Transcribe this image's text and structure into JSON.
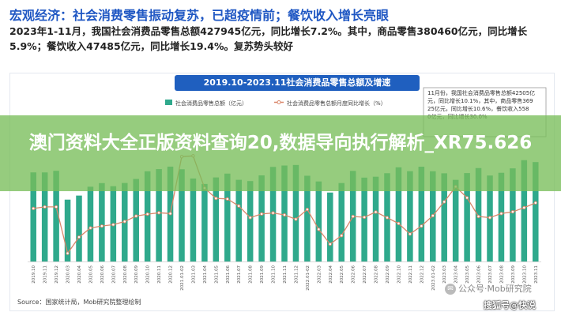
{
  "headline": "宏观经济：社会消费零售振动复苏，已超疫情前；餐饮收入增长亮眼",
  "summary": "2023年1-11月，我国社会消费品零售总额427945亿元，同比增长7.2%。其中，商品零售380460亿元，同比增长5.9%；餐饮收入47485亿元，同比增长19.4%。复苏势头较好",
  "overlay_title": "澳门资料大全正版资料查询20,数据导向执行解析_XR75.626",
  "source": "Source：国家统计局，Mob研究院整理绘制",
  "watermark": "公众号·Mob研究院",
  "sohu": "搜狐号@快说",
  "colors": {
    "bar": "#2fa98c",
    "line": "#d9866a",
    "title_bg": "#1f5fbf",
    "headline": "#1f57c3",
    "overlay": "#78be5a"
  },
  "chart_data": {
    "type": "bar",
    "title": "2019.10-2023.11社会消费品零售总额及增速",
    "legend": [
      "社会消费品零售总额（亿元）",
      "社会消费品零售总额月度同比增长（%）"
    ],
    "legend_position": "top-left",
    "annotation": "11月份，我国社会消费品零售总额42505亿元，同比增长10.1%，其中，商品零售36925亿元，同比增长10.6%，餐饮收入5580亿元，同比增长30.0%",
    "categories": [
      "2019.10",
      "2019.11",
      "2019.12",
      "2020.03",
      "2020.04",
      "2020.05",
      "2020.06",
      "2020.07",
      "2020.08",
      "2020.09",
      "2020.10",
      "2020.11",
      "2020.12",
      "2021.01-02",
      "2021.03",
      "2021.04",
      "2021.05",
      "2021.06",
      "2021.07",
      "2021.08",
      "2021.09",
      "2021.10",
      "2021.11",
      "2021.12",
      "2022.01-02",
      "2022.03",
      "2022.04",
      "2022.05",
      "2022.06",
      "2022.07",
      "2022.08",
      "2022.09",
      "2022.10",
      "2022.11",
      "2022.12",
      "2023.01-02",
      "2023.03",
      "2023.04",
      "2023.05",
      "2023.06",
      "2023.07",
      "2023.08",
      "2023.09",
      "2023.10",
      "2023.11"
    ],
    "values": [
      38104,
      38094,
      38777,
      26450,
      28178,
      31973,
      33526,
      32203,
      33571,
      35295,
      38576,
      39514,
      40566,
      39437,
      35484,
      33153,
      35945,
      37586,
      34925,
      34395,
      36833,
      40454,
      41043,
      41269,
      36669,
      34233,
      29483,
      33547,
      38742,
      35870,
      36258,
      37745,
      40271,
      38615,
      40542,
      38592,
      37715,
      34910,
      37803,
      39951,
      36761,
      37933,
      39826,
      43333,
      42505
    ],
    "series": [
      {
        "name": "社会消费品零售总额（亿元）",
        "values": [
          38104,
          38094,
          38777,
          26450,
          28178,
          31973,
          33526,
          32203,
          33571,
          35295,
          38576,
          39514,
          40566,
          39437,
          35484,
          33153,
          35945,
          37586,
          34925,
          34395,
          36833,
          40454,
          41043,
          41269,
          36669,
          34233,
          29483,
          33547,
          38742,
          35870,
          36258,
          37745,
          40271,
          38615,
          40542,
          38592,
          37715,
          34910,
          37803,
          39951,
          36761,
          37933,
          39826,
          43333,
          42505
        ]
      },
      {
        "name": "社会消费品零售总额月度同比增长（%）",
        "values": [
          7.2,
          8.0,
          8.0,
          -15.8,
          -7.5,
          -2.8,
          -1.8,
          -1.1,
          0.5,
          3.3,
          4.3,
          5.0,
          4.6,
          33.8,
          34.2,
          17.7,
          12.4,
          12.1,
          8.5,
          2.5,
          4.4,
          4.9,
          3.9,
          1.7,
          6.7,
          -3.5,
          -11.1,
          -6.7,
          3.1,
          2.7,
          5.4,
          2.5,
          -0.5,
          -5.9,
          -1.8,
          3.5,
          10.6,
          18.4,
          12.7,
          3.1,
          2.5,
          4.6,
          5.5,
          7.6,
          10.1
        ]
      }
    ],
    "ylim_left": [
      0,
      50000
    ],
    "ylim_right": [
      -20,
      40
    ],
    "grid": false
  }
}
